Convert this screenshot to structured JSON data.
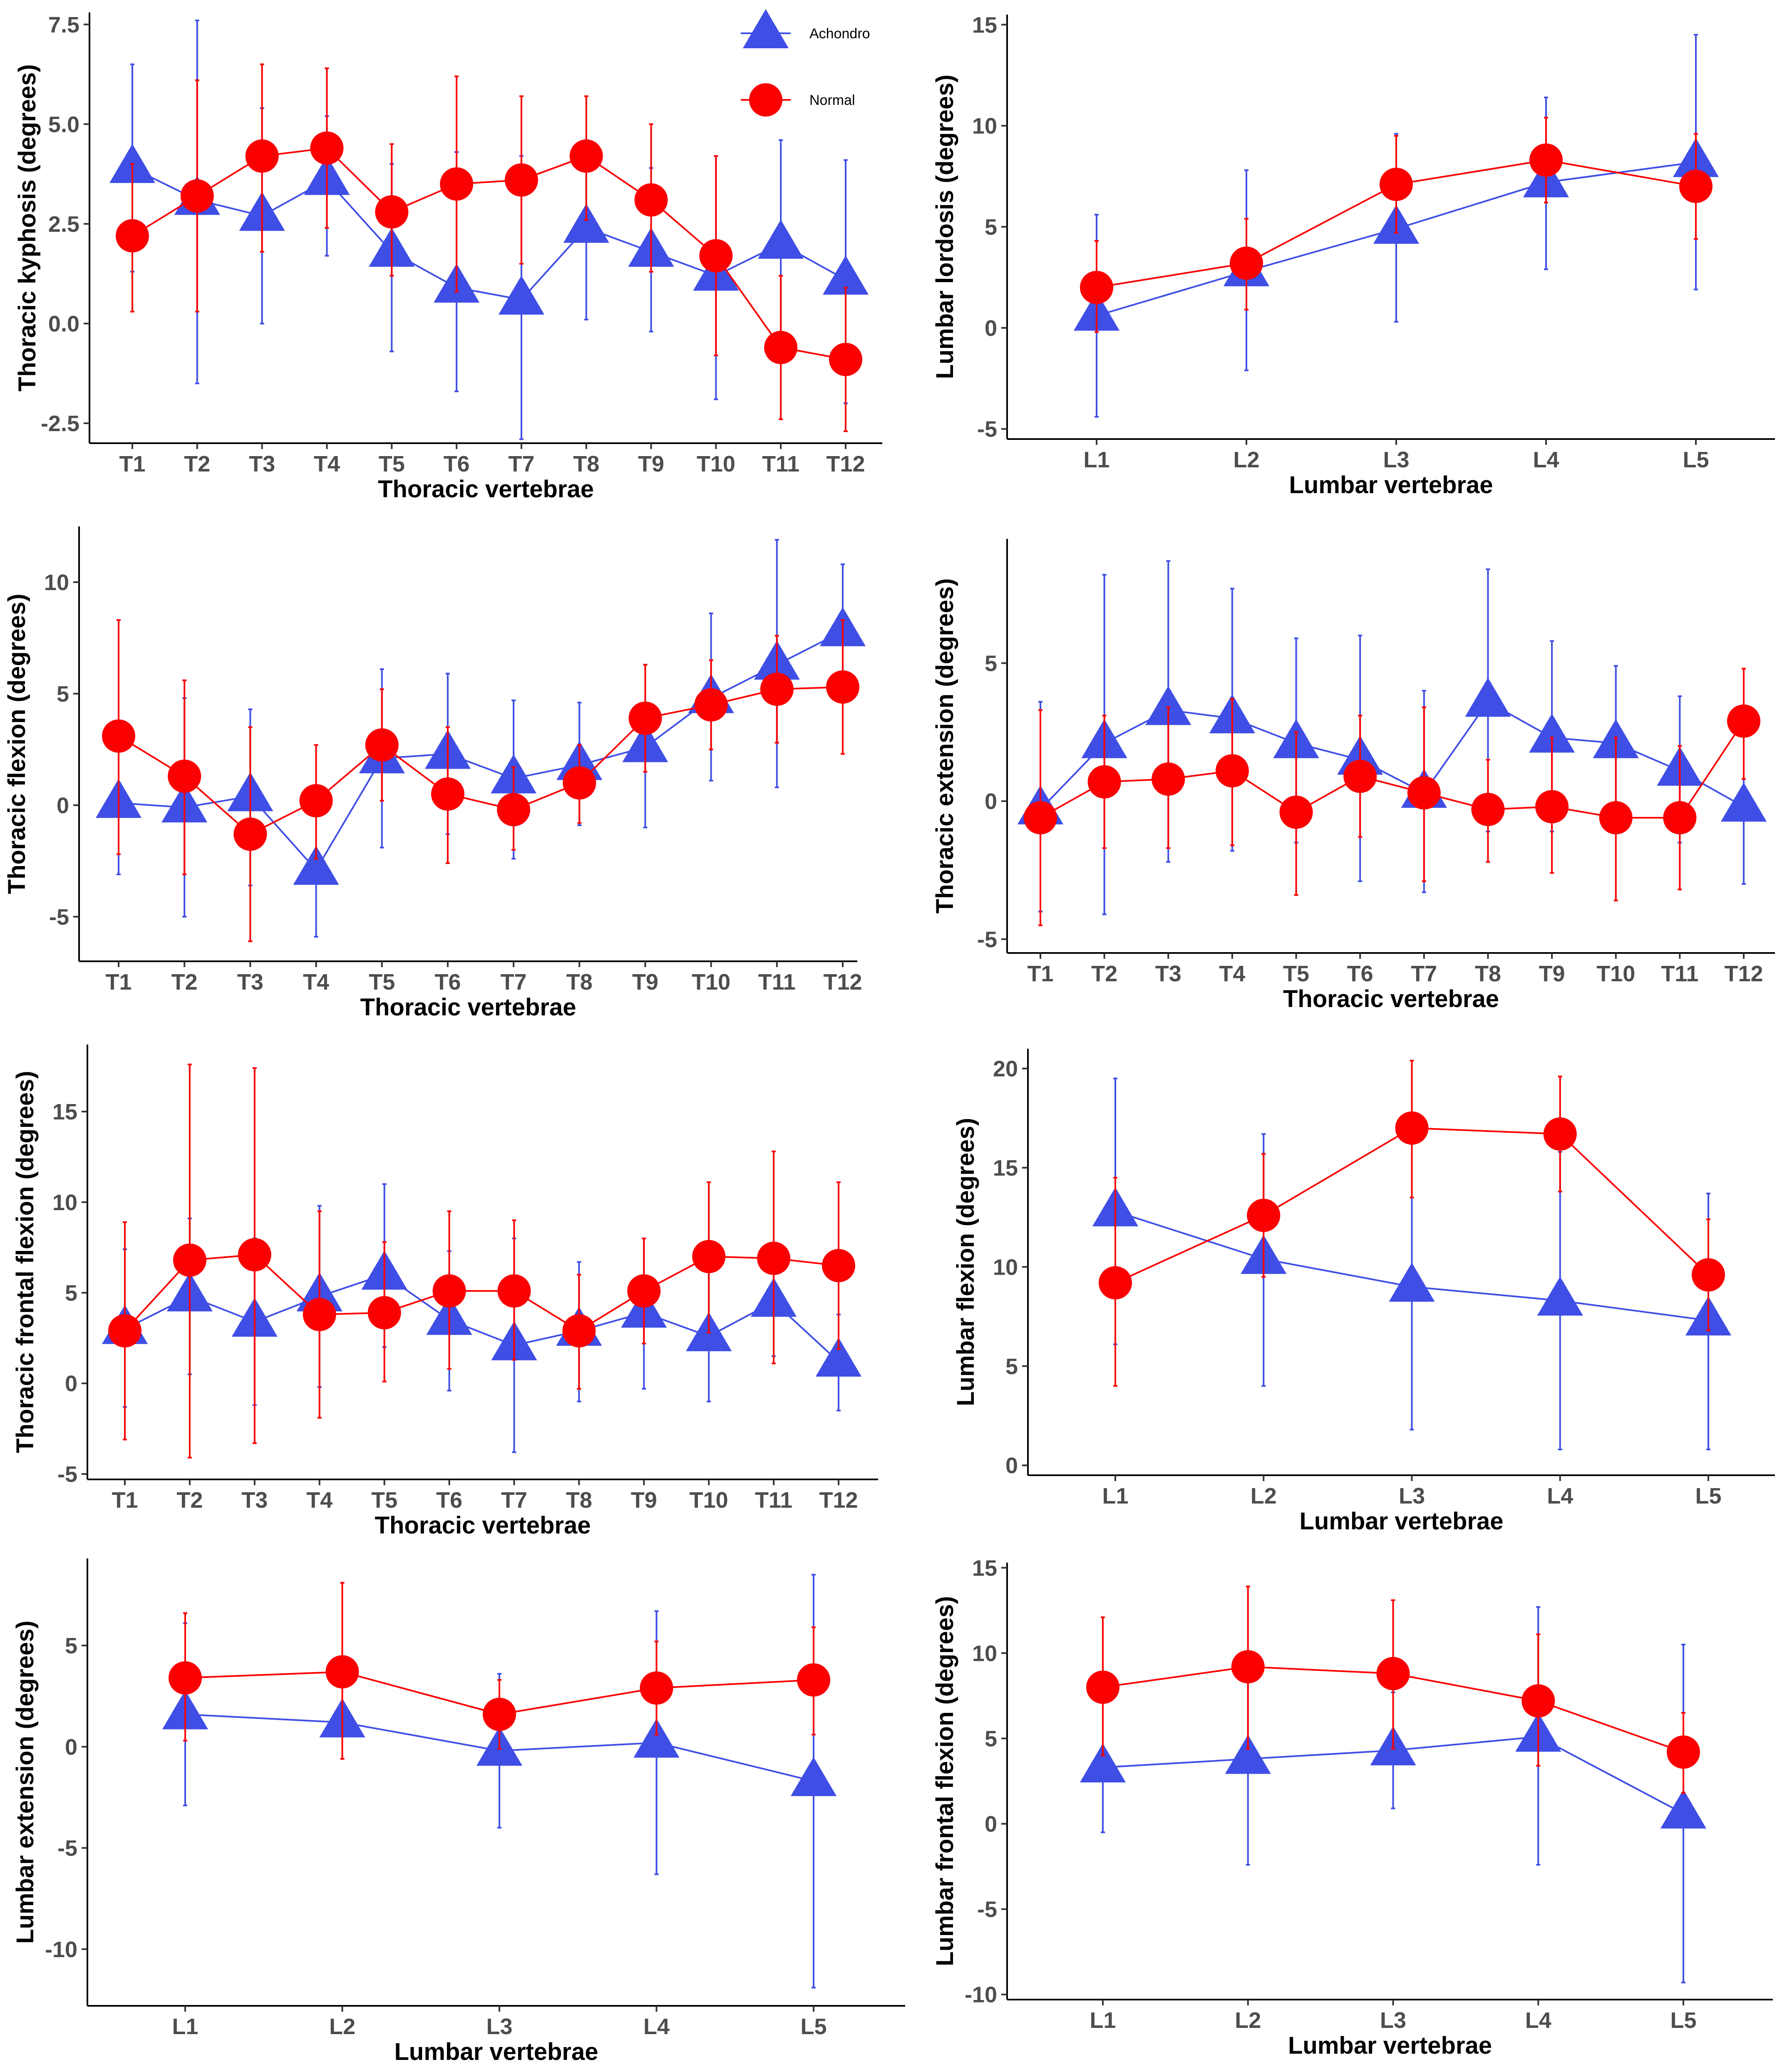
{
  "colors": {
    "achondro": "#3f4ee5",
    "normal": "#fa0000",
    "axis": "#000000",
    "tick_text": "#4d4d4d"
  },
  "legend": [
    {
      "name": "Achondro",
      "shape": "triangle",
      "color": "#3f4ee5"
    },
    {
      "name": "Normal",
      "shape": "circle",
      "color": "#fa0000"
    }
  ],
  "chart_data": [
    {
      "type": "line",
      "xlabel": "Thoracic vertebrae",
      "ylabel": "Thoracic kyphosis (degrees)",
      "categories": [
        "T1",
        "T2",
        "T3",
        "T4",
        "T5",
        "T6",
        "T7",
        "T8",
        "T9",
        "T10",
        "T11",
        "T12"
      ],
      "ylim": [
        -3.0,
        7.8
      ],
      "yticks": [
        -2.5,
        0.0,
        2.5,
        5.0,
        7.5
      ],
      "ytick_labels": [
        "-2.5",
        "0.0",
        "2.5",
        "5.0",
        "7.5"
      ],
      "series": [
        {
          "name": "Achondro",
          "values": [
            3.9,
            3.1,
            2.7,
            3.6,
            1.8,
            0.9,
            0.6,
            2.4,
            1.8,
            1.2,
            2.0,
            1.1
          ],
          "lower": [
            1.3,
            -1.5,
            0.0,
            1.7,
            -0.7,
            -1.7,
            -2.9,
            0.1,
            -0.2,
            -1.9,
            -0.6,
            -2.0
          ],
          "upper": [
            6.5,
            7.6,
            5.4,
            5.2,
            4.0,
            4.3,
            4.2,
            4.6,
            3.9,
            4.2,
            4.6,
            4.1
          ]
        },
        {
          "name": "Normal",
          "values": [
            2.2,
            3.2,
            4.2,
            4.4,
            2.8,
            3.5,
            3.6,
            4.2,
            3.1,
            1.7,
            -0.6,
            -0.9
          ],
          "lower": [
            0.3,
            0.3,
            1.8,
            2.4,
            1.2,
            0.8,
            1.5,
            2.6,
            1.3,
            -0.8,
            -2.4,
            -2.7
          ],
          "upper": [
            4.0,
            6.1,
            6.5,
            6.4,
            4.5,
            6.2,
            5.7,
            5.7,
            5.0,
            4.2,
            1.2,
            0.9
          ]
        }
      ],
      "legend": "top-right"
    },
    {
      "type": "line",
      "xlabel": "Lumbar vertebrae",
      "ylabel": "Lumbar lordosis (degrees)",
      "categories": [
        "L1",
        "L2",
        "L3",
        "L4",
        "L5"
      ],
      "ylim": [
        -5.5,
        15.5
      ],
      "yticks": [
        -5,
        0,
        5,
        10,
        15
      ],
      "ytick_labels": [
        "-5",
        "0",
        "5",
        "10",
        "15"
      ],
      "series": [
        {
          "name": "Achondro",
          "values": [
            0.6,
            2.8,
            4.9,
            7.2,
            8.2
          ],
          "lower": [
            -4.4,
            -2.1,
            0.3,
            2.9,
            1.9
          ],
          "upper": [
            5.6,
            7.8,
            9.6,
            11.4,
            14.5
          ]
        },
        {
          "name": "Normal",
          "values": [
            2.0,
            3.2,
            7.1,
            8.3,
            7.0
          ],
          "lower": [
            -0.2,
            0.9,
            4.7,
            6.2,
            4.4
          ],
          "upper": [
            4.3,
            5.4,
            9.5,
            10.4,
            9.6
          ]
        }
      ]
    },
    {
      "type": "line",
      "xlabel": "Thoracic vertebrae",
      "ylabel": "Thoracic flexion (degrees)",
      "categories": [
        "T1",
        "T2",
        "T3",
        "T4",
        "T5",
        "T6",
        "T7",
        "T8",
        "T9",
        "T10",
        "T11",
        "T12"
      ],
      "ylim": [
        -7.0,
        12.5
      ],
      "yticks": [
        -5,
        0,
        5,
        10
      ],
      "ytick_labels": [
        "-5",
        "0",
        "5",
        "10"
      ],
      "series": [
        {
          "name": "Achondro",
          "values": [
            0.1,
            -0.1,
            0.4,
            -2.9,
            2.1,
            2.3,
            1.2,
            1.8,
            2.6,
            4.8,
            6.3,
            7.8
          ],
          "lower": [
            -3.1,
            -5.0,
            -3.6,
            -5.9,
            -1.9,
            -1.3,
            -2.4,
            -0.9,
            -1.0,
            1.1,
            0.8,
            4.8
          ],
          "upper": [
            3.3,
            4.8,
            4.3,
            0.2,
            6.1,
            5.9,
            4.7,
            4.6,
            6.3,
            8.6,
            11.9,
            10.8
          ]
        },
        {
          "name": "Normal",
          "values": [
            3.1,
            1.3,
            -1.3,
            0.2,
            2.7,
            0.5,
            -0.2,
            1.0,
            3.9,
            4.5,
            5.2,
            5.3
          ],
          "lower": [
            -2.2,
            -3.1,
            -6.1,
            -2.4,
            0.2,
            -2.6,
            -2.0,
            -0.8,
            1.5,
            2.5,
            2.8,
            2.3
          ],
          "upper": [
            8.3,
            5.6,
            3.5,
            2.7,
            5.2,
            3.5,
            1.7,
            2.7,
            6.3,
            6.5,
            7.6,
            8.3
          ]
        }
      ]
    },
    {
      "type": "line",
      "xlabel": "Thoracic vertebrae",
      "ylabel": "Thoracic extension (degrees)",
      "categories": [
        "T1",
        "T2",
        "T3",
        "T4",
        "T5",
        "T6",
        "T7",
        "T8",
        "T9",
        "T10",
        "T11",
        "T12"
      ],
      "ylim": [
        -5.5,
        9.5
      ],
      "yticks": [
        -5,
        0,
        5
      ],
      "ytick_labels": [
        "-5",
        "0",
        "5"
      ],
      "series": [
        {
          "name": "Achondro",
          "values": [
            -0.3,
            2.1,
            3.3,
            3.0,
            2.1,
            1.5,
            0.3,
            3.6,
            2.3,
            2.1,
            1.1,
            -0.2
          ],
          "lower": [
            -4.0,
            -4.1,
            -2.2,
            -1.8,
            -1.5,
            -2.9,
            -3.3,
            -1.1,
            -1.1,
            -0.7,
            -1.5,
            -3.0
          ],
          "upper": [
            3.6,
            8.2,
            8.7,
            7.7,
            5.9,
            6.0,
            4.0,
            8.4,
            5.8,
            4.9,
            3.8,
            2.6
          ]
        },
        {
          "name": "Normal",
          "values": [
            -0.6,
            0.7,
            0.8,
            1.1,
            -0.4,
            0.9,
            0.3,
            -0.3,
            -0.2,
            -0.6,
            -0.6,
            2.9
          ],
          "lower": [
            -4.5,
            -1.7,
            -1.7,
            -1.6,
            -3.4,
            -1.3,
            -2.9,
            -2.2,
            -2.6,
            -3.6,
            -3.2,
            0.8
          ],
          "upper": [
            3.3,
            3.1,
            3.4,
            3.7,
            2.5,
            3.1,
            3.4,
            1.5,
            2.3,
            2.3,
            2.0,
            4.8
          ]
        }
      ]
    },
    {
      "type": "line",
      "xlabel": "Thoracic vertebrae",
      "ylabel": "Thoracic frontal flexion (degrees)",
      "categories": [
        "T1",
        "T2",
        "T3",
        "T4",
        "T5",
        "T6",
        "T7",
        "T8",
        "T9",
        "T10",
        "T11",
        "T12"
      ],
      "ylim": [
        -5.3,
        18.7
      ],
      "yticks": [
        -5,
        0,
        5,
        10,
        15
      ],
      "ytick_labels": [
        "-5",
        "0",
        "5",
        "10",
        "15"
      ],
      "series": [
        {
          "name": "Achondro",
          "values": [
            3.0,
            4.8,
            3.4,
            4.8,
            6.0,
            3.5,
            2.1,
            2.9,
            3.9,
            2.6,
            4.5,
            1.2
          ],
          "lower": [
            -1.3,
            0.5,
            -1.2,
            -0.2,
            2.0,
            -0.4,
            -3.8,
            -1.0,
            -0.3,
            -1.0,
            1.5,
            -1.5
          ],
          "upper": [
            7.4,
            9.1,
            8.0,
            9.8,
            11.0,
            7.3,
            8.0,
            6.7,
            8.0,
            6.2,
            7.5,
            3.8
          ]
        },
        {
          "name": "Normal",
          "values": [
            2.9,
            6.8,
            7.1,
            3.8,
            3.9,
            5.1,
            5.1,
            2.9,
            5.1,
            7.0,
            6.9,
            6.5
          ],
          "lower": [
            -3.1,
            -4.1,
            -3.3,
            -1.9,
            0.1,
            0.8,
            1.3,
            -0.3,
            2.2,
            2.8,
            1.1,
            1.9
          ],
          "upper": [
            8.9,
            17.6,
            17.4,
            9.5,
            7.8,
            9.5,
            9.0,
            6.0,
            8.0,
            11.1,
            12.8,
            11.1
          ]
        }
      ]
    },
    {
      "type": "line",
      "xlabel": "Lumbar vertebrae",
      "ylabel": "Lumbar flexion (degrees)",
      "categories": [
        "L1",
        "L2",
        "L3",
        "L4",
        "L5"
      ],
      "ylim": [
        -0.5,
        21.0
      ],
      "yticks": [
        0,
        5,
        10,
        15,
        20
      ],
      "ytick_labels": [
        "0",
        "5",
        "10",
        "15",
        "20"
      ],
      "series": [
        {
          "name": "Achondro",
          "values": [
            12.8,
            10.4,
            9.0,
            8.3,
            7.3
          ],
          "lower": [
            6.1,
            4.0,
            1.8,
            0.8,
            0.8
          ],
          "upper": [
            19.5,
            16.7,
            16.2,
            15.8,
            13.7
          ]
        },
        {
          "name": "Normal",
          "values": [
            9.2,
            12.6,
            17.0,
            16.7,
            9.6
          ],
          "lower": [
            4.0,
            9.5,
            13.5,
            13.8,
            6.8
          ],
          "upper": [
            14.5,
            15.7,
            20.4,
            19.6,
            12.4
          ]
        }
      ]
    },
    {
      "type": "line",
      "xlabel": "Lumbar vertebrae",
      "ylabel": "Lumbar extension (degrees)",
      "categories": [
        "L1",
        "L2",
        "L3",
        "L4",
        "L5"
      ],
      "ylim": [
        -12.8,
        9.3
      ],
      "yticks": [
        -10,
        -5,
        0,
        5
      ],
      "ytick_labels": [
        "-10",
        "-5",
        "0",
        "5"
      ],
      "series": [
        {
          "name": "Achondro",
          "values": [
            1.6,
            1.2,
            -0.2,
            0.2,
            -1.7
          ],
          "lower": [
            -2.9,
            -0.6,
            -4.0,
            -6.3,
            -11.9
          ],
          "upper": [
            6.1,
            3.0,
            3.6,
            6.7,
            8.5
          ]
        },
        {
          "name": "Normal",
          "values": [
            3.4,
            3.7,
            1.6,
            2.9,
            3.3
          ],
          "lower": [
            0.3,
            -0.6,
            -0.1,
            0.6,
            0.6
          ],
          "upper": [
            6.6,
            8.1,
            3.3,
            5.2,
            5.9
          ]
        }
      ]
    },
    {
      "type": "line",
      "xlabel": "Lumbar vertebrae",
      "ylabel": "Lumbar frontal flexion (degrees)",
      "categories": [
        "L1",
        "L2",
        "L3",
        "L4",
        "L5"
      ],
      "ylim": [
        -10.3,
        15.3
      ],
      "yticks": [
        -10,
        -5,
        0,
        5,
        10,
        15
      ],
      "ytick_labels": [
        "-10",
        "-5",
        "0",
        "5",
        "10",
        "15"
      ],
      "series": [
        {
          "name": "Achondro",
          "values": [
            3.3,
            3.8,
            4.3,
            5.1,
            0.6
          ],
          "lower": [
            -0.5,
            -2.4,
            0.9,
            -2.4,
            -9.3
          ],
          "upper": [
            7.1,
            9.9,
            7.7,
            12.7,
            10.5
          ]
        },
        {
          "name": "Normal",
          "values": [
            8.0,
            9.2,
            8.8,
            7.2,
            4.2
          ],
          "lower": [
            4.0,
            4.4,
            4.4,
            3.4,
            1.8
          ],
          "upper": [
            12.1,
            13.9,
            13.1,
            11.1,
            6.5
          ]
        }
      ]
    }
  ]
}
